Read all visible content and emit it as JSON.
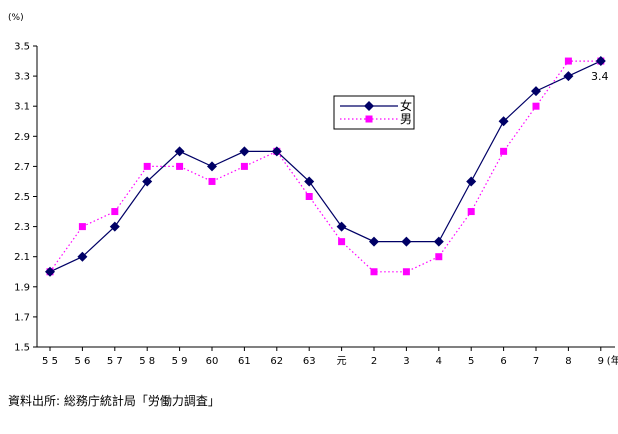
{
  "chart_data": {
    "type": "line",
    "y_unit": "(%)",
    "x_unit": "(年)",
    "categories": [
      "5 5",
      "5 6",
      "5 7",
      "5 8",
      "5 9",
      "60",
      "61",
      "62",
      "63",
      "元",
      "2",
      "3",
      "4",
      "5",
      "6",
      "7",
      "8",
      "9"
    ],
    "ylim": [
      1.5,
      3.5
    ],
    "yticks": [
      "1.5",
      "1.7",
      "1.9",
      "2.1",
      "2.3",
      "2.5",
      "2.7",
      "2.9",
      "3.1",
      "3.3",
      "3.5"
    ],
    "series": [
      {
        "name": "女",
        "color": "#000066",
        "marker": "diamond",
        "line": "solid",
        "values": [
          2.0,
          2.1,
          2.3,
          2.6,
          2.8,
          2.7,
          2.8,
          2.8,
          2.6,
          2.3,
          2.2,
          2.2,
          2.2,
          2.6,
          3.0,
          3.2,
          3.3,
          3.4
        ]
      },
      {
        "name": "男",
        "color": "#ff00ff",
        "marker": "square",
        "line": "dotted",
        "values": [
          2.0,
          2.3,
          2.4,
          2.7,
          2.7,
          2.6,
          2.7,
          2.8,
          2.5,
          2.2,
          2.0,
          2.0,
          2.1,
          2.4,
          2.8,
          3.1,
          3.4,
          3.4
        ]
      }
    ],
    "annotation": "3.4",
    "grid": false,
    "legend_position": "center-right"
  },
  "source": "資料出所: 総務庁統計局「労働力調査」"
}
